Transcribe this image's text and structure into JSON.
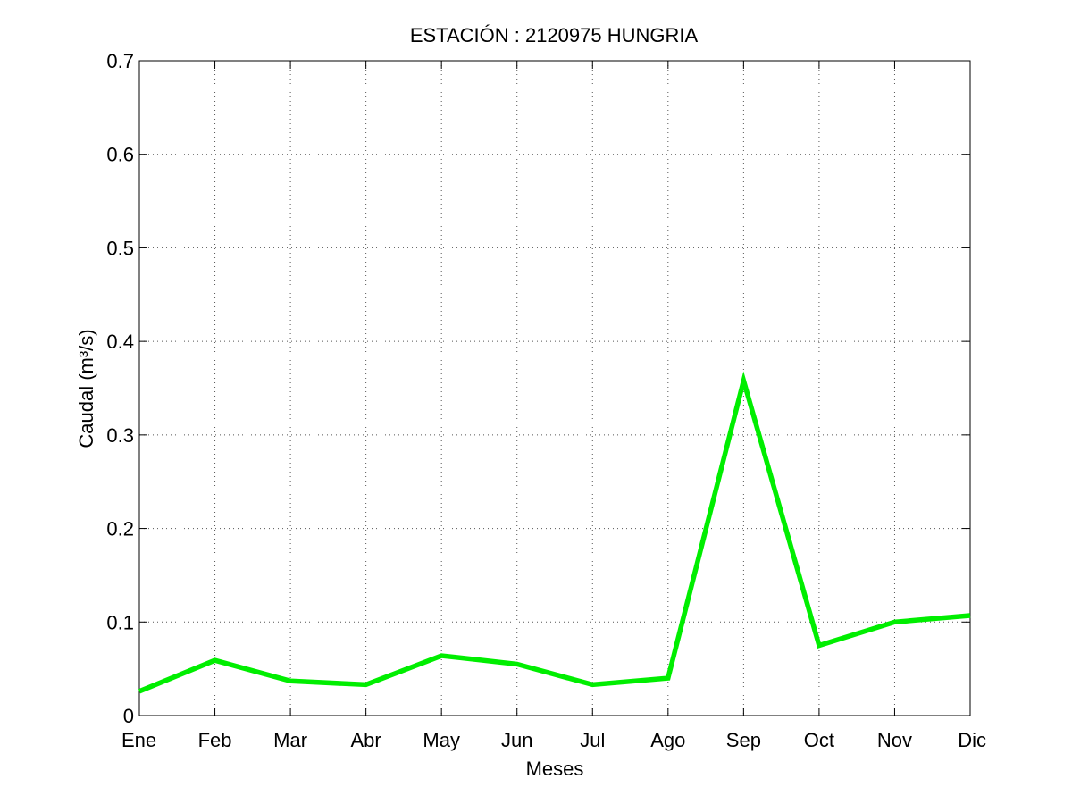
{
  "chart_data": {
    "type": "line",
    "title": "ESTACIÓN :  2120975  HUNGRIA",
    "xlabel": "Meses",
    "ylabel": "Caudal (m³/s)",
    "categories": [
      "Ene",
      "Feb",
      "Mar",
      "Abr",
      "May",
      "Jun",
      "Jul",
      "Ago",
      "Sep",
      "Oct",
      "Nov",
      "Dic"
    ],
    "series": [
      {
        "values": [
          0.026,
          0.059,
          0.037,
          0.033,
          0.064,
          0.055,
          0.033,
          0.04,
          0.358,
          0.075,
          0.1,
          0.107
        ],
        "color": "#00ee00"
      }
    ],
    "ylim": [
      0,
      0.7
    ],
    "yticks": [
      {
        "value": 0,
        "label": "0"
      },
      {
        "value": 0.1,
        "label": "0.1"
      },
      {
        "value": 0.2,
        "label": "0.2"
      },
      {
        "value": 0.3,
        "label": "0.3"
      },
      {
        "value": 0.4,
        "label": "0.4"
      },
      {
        "value": 0.5,
        "label": "0.5"
      },
      {
        "value": 0.6,
        "label": "0.6"
      },
      {
        "value": 0.7,
        "label": "0.7"
      }
    ],
    "grid": true,
    "legend": "none"
  }
}
